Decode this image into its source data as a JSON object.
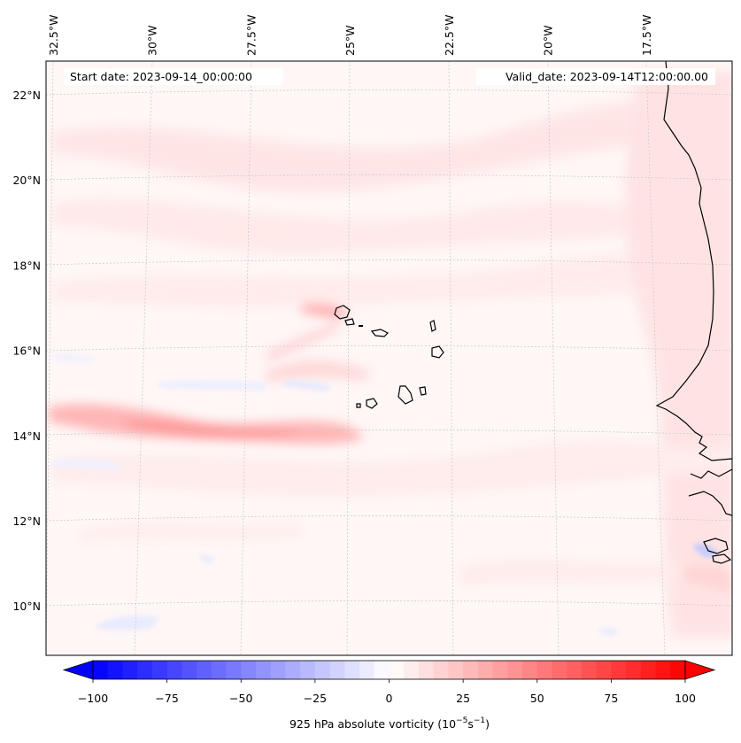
{
  "map": {
    "start_date_label": "Start date: 2023-09-14_00:00:00",
    "valid_date_label": "Valid_date: 2023-09-14T12:00:00.00",
    "lon_ticks": [
      {
        "value": -32.5,
        "label": "32.5°W"
      },
      {
        "value": -30.0,
        "label": "30°W"
      },
      {
        "value": -27.5,
        "label": "27.5°W"
      },
      {
        "value": -25.0,
        "label": "25°W"
      },
      {
        "value": -22.5,
        "label": "22.5°W"
      },
      {
        "value": -20.0,
        "label": "20°W"
      },
      {
        "value": -17.5,
        "label": "17.5°W"
      }
    ],
    "lat_ticks": [
      {
        "value": 22,
        "label": "22°N"
      },
      {
        "value": 20,
        "label": "20°N"
      },
      {
        "value": 18,
        "label": "18°N"
      },
      {
        "value": 16,
        "label": "16°N"
      },
      {
        "value": 14,
        "label": "14°N"
      },
      {
        "value": 12,
        "label": "12°N"
      },
      {
        "value": 10,
        "label": "10°N"
      }
    ]
  },
  "colorbar": {
    "label_text": "925 hPa absolute vorticity (10",
    "label_exp1": "−5",
    "label_mid": "s",
    "label_exp2": "−1",
    "label_close": ")",
    "min": -100,
    "max": 100,
    "ticks": [
      {
        "value": -100,
        "label": "−100"
      },
      {
        "value": -75,
        "label": "−75"
      },
      {
        "value": -50,
        "label": "−50"
      },
      {
        "value": -25,
        "label": "−25"
      },
      {
        "value": 0,
        "label": "0"
      },
      {
        "value": 25,
        "label": "25"
      },
      {
        "value": 50,
        "label": "50"
      },
      {
        "value": 75,
        "label": "75"
      },
      {
        "value": 100,
        "label": "100"
      }
    ],
    "colors": {
      "neg": "#0000ff",
      "mid": "#ffffff",
      "pos": "#ff0000"
    }
  }
}
